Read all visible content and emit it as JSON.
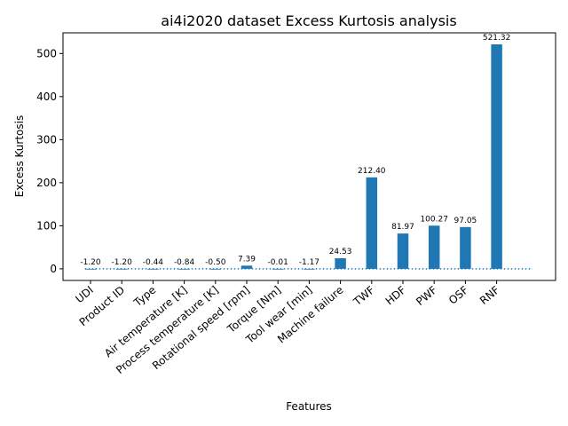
{
  "chart_data": {
    "type": "bar",
    "title": "ai4i2020 dataset Excess Kurtosis analysis",
    "xlabel": "Features",
    "ylabel": "Excess Kurtosis",
    "categories": [
      "UDI",
      "Product ID",
      "Type",
      "Air temperature [K]",
      "Process temperature [K]",
      "Rotational speed [rpm]",
      "Torque [Nm]",
      "Tool wear [min]",
      "Machine failure",
      "TWF",
      "HDF",
      "PWF",
      "OSF",
      "RNF"
    ],
    "values": [
      -1.2,
      -1.2,
      -0.44,
      -0.84,
      -0.5,
      7.39,
      -0.01,
      -1.17,
      24.53,
      212.4,
      81.97,
      100.27,
      97.05,
      521.32
    ],
    "data_labels": [
      "-1.20",
      "-1.20",
      "-0.44",
      "-0.84",
      "-0.50",
      "7.39",
      "-0.01",
      "-1.17",
      "24.53",
      "212.40",
      "81.97",
      "100.27",
      "97.05",
      "521.32"
    ],
    "ylim": [
      -27,
      548
    ],
    "yticks": [
      0,
      100,
      200,
      300,
      400,
      500
    ],
    "reference_line": 0,
    "grid": false,
    "color": "#1f77b4"
  }
}
